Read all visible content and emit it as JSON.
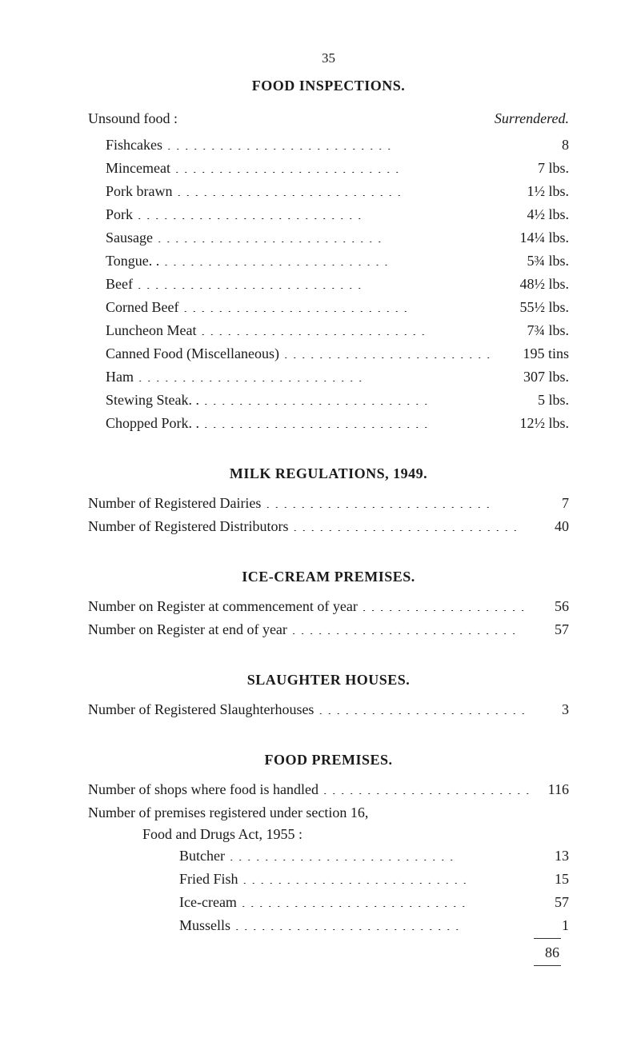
{
  "page_number": "35",
  "sections": {
    "food_inspections": {
      "title": "FOOD INSPECTIONS.",
      "subhead_left": "Unsound food :",
      "subhead_right": "Surrendered.",
      "items": [
        {
          "label": "Fishcakes",
          "value": "8"
        },
        {
          "label": "Mincemeat",
          "value": "7 lbs."
        },
        {
          "label": "Pork brawn",
          "value": "1½ lbs."
        },
        {
          "label": "Pork",
          "value": "4½ lbs."
        },
        {
          "label": "Sausage",
          "value": "14¼ lbs."
        },
        {
          "label": "Tongue. .",
          "value": "5¾ lbs."
        },
        {
          "label": "Beef",
          "value": "48½ lbs."
        },
        {
          "label": "Corned Beef",
          "value": "55½ lbs."
        },
        {
          "label": "Luncheon Meat",
          "value": "7¾ lbs."
        },
        {
          "label": "Canned Food (Miscellaneous)",
          "value": "195 tins"
        },
        {
          "label": "Ham",
          "value": "307 lbs."
        },
        {
          "label": "Stewing Steak. .",
          "value": "5 lbs."
        },
        {
          "label": "Chopped Pork. .",
          "value": "12½ lbs."
        }
      ]
    },
    "milk": {
      "title": "MILK REGULATIONS, 1949.",
      "items": [
        {
          "label": "Number of Registered Dairies",
          "value": "7"
        },
        {
          "label": "Number of Registered Distributors",
          "value": "40"
        }
      ]
    },
    "icecream": {
      "title": "ICE-CREAM PREMISES.",
      "items": [
        {
          "label": "Number on Register at commencement of year",
          "value": "56"
        },
        {
          "label": "Number on Register at end of year",
          "value": "57"
        }
      ]
    },
    "slaughter": {
      "title": "SLAUGHTER HOUSES.",
      "items": [
        {
          "label": "Number of Registered Slaughterhouses",
          "value": "3"
        }
      ]
    },
    "foodpremises": {
      "title": "FOOD PREMISES.",
      "line1_label": "Number of shops where food is handled",
      "line1_value": "116",
      "line2a": "Number of premises registered under section 16,",
      "line2b": "Food and Drugs Act, 1955 :",
      "sub_items": [
        {
          "label": "Butcher",
          "value": "13"
        },
        {
          "label": "Fried Fish",
          "value": "15"
        },
        {
          "label": "Ice-cream",
          "value": "57"
        },
        {
          "label": "Mussells",
          "value": "1"
        }
      ],
      "total": "86"
    }
  }
}
